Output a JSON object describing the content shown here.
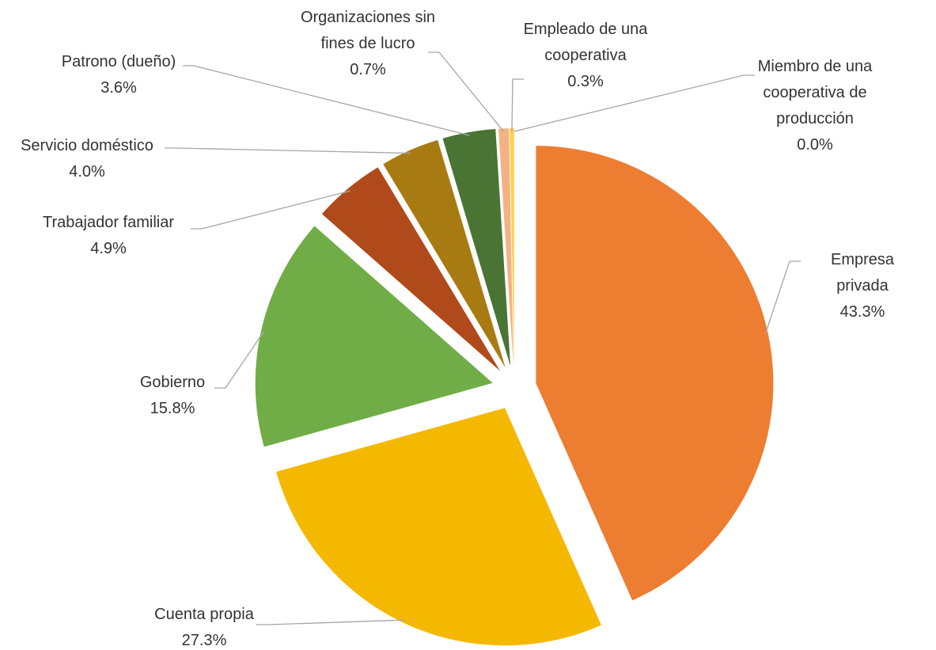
{
  "chart_data": {
    "type": "pie",
    "categories": [
      "Empresa privada",
      "Cuenta propia",
      "Gobierno",
      "Trabajador familiar",
      "Servicio doméstico",
      "Patrono (dueño)",
      "Organizaciones sin fines de lucro",
      "Empleado de una cooperativa",
      "Miembro de una cooperativa de producción"
    ],
    "values": [
      43.3,
      27.3,
      15.8,
      4.9,
      4.0,
      3.6,
      0.7,
      0.3,
      0.0
    ],
    "value_labels": [
      "43.3%",
      "27.3%",
      "15.8%",
      "4.9%",
      "4.0%",
      "3.6%",
      "0.7%",
      "0.3%",
      "0.0%"
    ],
    "colors": [
      "#ed7d31",
      "#f5b800",
      "#70ad47",
      "#b04a1a",
      "#a87a12",
      "#4a7434",
      "#f4b183",
      "#ffd24d",
      "#c8a040"
    ]
  }
}
